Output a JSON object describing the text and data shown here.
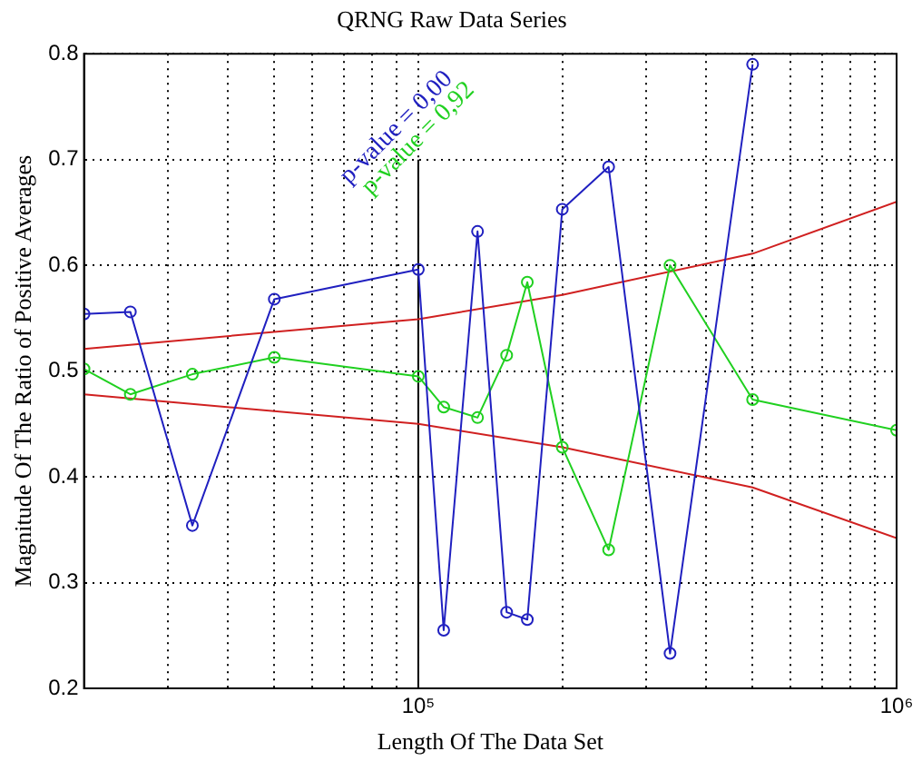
{
  "chart_data": {
    "type": "line",
    "title": "QRNG Raw Data Series",
    "xlabel": "Length Of The Data Set",
    "ylabel": "Magnitude Of The Ratio of Positive Averages",
    "log": "x",
    "grid": true,
    "marker": "circle",
    "line_style": "solid",
    "legend": false,
    "xlim": [
      20000,
      1000000
    ],
    "ylim": [
      0.2,
      0.8
    ],
    "xticks": [
      {
        "value": 20000,
        "label": null
      },
      {
        "value": 30000,
        "label": null
      },
      {
        "value": 40000,
        "label": null
      },
      {
        "value": 50000,
        "label": null
      },
      {
        "value": 60000,
        "label": null
      },
      {
        "value": 70000,
        "label": null
      },
      {
        "value": 80000,
        "label": null
      },
      {
        "value": 90000,
        "label": null
      },
      {
        "value": 100000,
        "label": "10⁵"
      },
      {
        "value": 200000,
        "label": null
      },
      {
        "value": 300000,
        "label": null
      },
      {
        "value": 400000,
        "label": null
      },
      {
        "value": 500000,
        "label": null
      },
      {
        "value": 600000,
        "label": null
      },
      {
        "value": 700000,
        "label": null
      },
      {
        "value": 800000,
        "label": null
      },
      {
        "value": 900000,
        "label": null
      },
      {
        "value": 1000000,
        "label": "10⁶"
      }
    ],
    "yticks": [
      0.2,
      0.3,
      0.4,
      0.5,
      0.6,
      0.7,
      0.8
    ],
    "series": [
      {
        "color": "#2020c0",
        "x": [
          20000,
          25000,
          33700,
          50000,
          100000,
          113000,
          133000,
          153000,
          169000,
          200000,
          250000,
          336000,
          500000
        ],
        "values": [
          0.554,
          0.556,
          0.354,
          0.568,
          0.596,
          0.255,
          0.632,
          0.272,
          0.265,
          0.653,
          0.693,
          0.233,
          0.79
        ]
      },
      {
        "color": "#20d020",
        "x": [
          20000,
          25000,
          33700,
          50000,
          100000,
          113000,
          133000,
          153000,
          169000,
          200000,
          250000,
          336000,
          500000,
          1000000
        ],
        "values": [
          0.502,
          0.478,
          0.497,
          0.513,
          0.495,
          0.466,
          0.456,
          0.515,
          0.584,
          0.428,
          0.331,
          0.6,
          0.473,
          0.444
        ]
      },
      {
        "color": "#d02020",
        "marker": "none",
        "x": [
          20000,
          100000,
          200000,
          500000,
          1000000
        ],
        "values": [
          0.521,
          0.549,
          0.572,
          0.611,
          0.66
        ]
      },
      {
        "color": "#d02020",
        "marker": "none",
        "x": [
          20000,
          100000,
          200000,
          500000,
          1000000
        ],
        "values": [
          0.478,
          0.45,
          0.428,
          0.39,
          0.342
        ]
      },
      {
        "color": "#000000",
        "marker": "none",
        "x": [
          100000,
          100000
        ],
        "values": [
          0.2,
          0.7
        ]
      }
    ],
    "annotations": [
      "p-value = 0,00",
      "p-value = 0,92"
    ]
  }
}
